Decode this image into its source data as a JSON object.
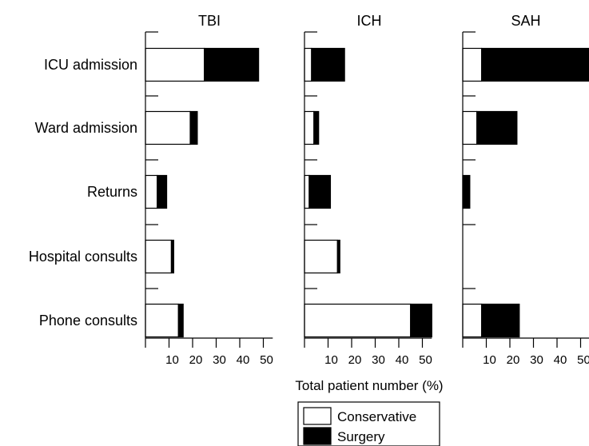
{
  "chart_data": {
    "type": "bar",
    "orientation": "horizontal",
    "stacked": true,
    "categories": [
      "ICU admission",
      "Ward admission",
      "Returns",
      "Hospital consults",
      "Phone consults"
    ],
    "xlabel": "Total patient number (%)",
    "ticks": [
      10,
      20,
      30,
      40,
      50
    ],
    "xlim": [
      0,
      60
    ],
    "colors": {
      "Conservative": "#ffffff",
      "Surgery": "#000000"
    },
    "legend": {
      "placement": "bottom",
      "entries": [
        {
          "name": "Conservative",
          "color": "#ffffff"
        },
        {
          "name": "Surgery",
          "color": "#000000"
        }
      ]
    },
    "panels": [
      {
        "title": "TBI",
        "series": [
          {
            "name": "Conservative",
            "values": [
              25,
              19,
              5,
              11,
              14
            ]
          },
          {
            "name": "Surgery",
            "values": [
              23,
              3,
              4,
              1,
              2
            ]
          }
        ]
      },
      {
        "title": "ICH",
        "series": [
          {
            "name": "Conservative",
            "values": [
              3,
              4,
              2,
              14,
              45
            ]
          },
          {
            "name": "Surgery",
            "values": [
              14,
              2,
              9,
              1,
              9
            ]
          }
        ]
      },
      {
        "title": "SAH",
        "series": [
          {
            "name": "Conservative",
            "values": [
              8,
              6,
              0,
              0,
              8
            ]
          },
          {
            "name": "Surgery",
            "values": [
              47,
              17,
              3,
              0,
              16
            ]
          }
        ]
      }
    ]
  }
}
